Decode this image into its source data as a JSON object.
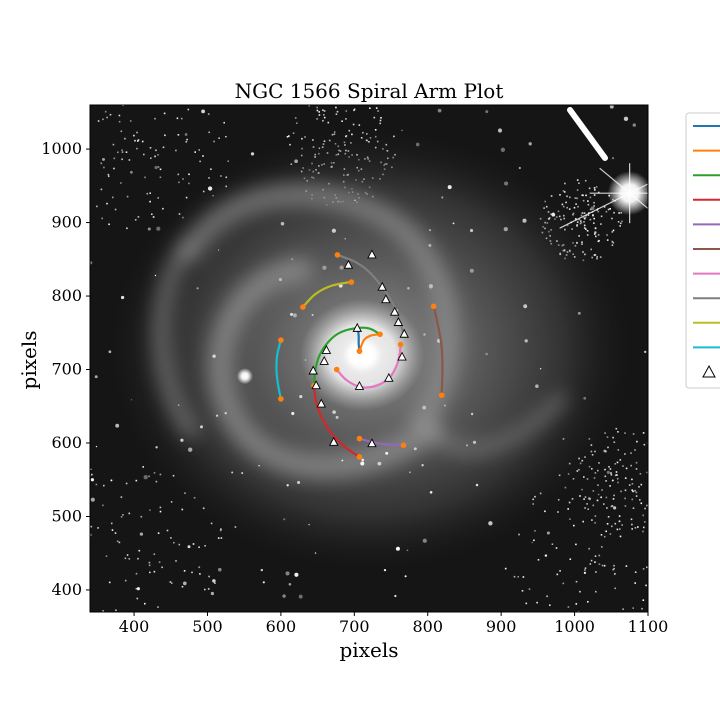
{
  "chart_data": {
    "type": "scatter",
    "title": "NGC 1566 Spiral Arm Plot",
    "xlabel": "pixels",
    "ylabel": "pixels",
    "xlim": [
      340,
      1100
    ],
    "ylim": [
      370,
      1060
    ],
    "xticks": [
      400,
      500,
      600,
      700,
      800,
      900,
      1000,
      1100
    ],
    "yticks": [
      400,
      500,
      600,
      700,
      800,
      900,
      1000
    ],
    "background": "grayscale galaxy image (NGC 1566)",
    "legend_placement": "right, outside axes (clipped)",
    "series": [
      {
        "kind": "arc",
        "color": "#1f77b4",
        "points": [
          [
            705,
            755
          ],
          [
            706,
            745
          ],
          [
            706,
            735
          ],
          [
            707,
            725
          ]
        ],
        "endpoints": [
          [
            707,
            725
          ]
        ]
      },
      {
        "kind": "arc",
        "color": "#ff7f0e",
        "points": [
          [
            707,
            725
          ],
          [
            713,
            740
          ],
          [
            722,
            746
          ],
          [
            735,
            748
          ]
        ],
        "endpoints": [
          [
            707,
            725
          ],
          [
            735,
            748
          ]
        ]
      },
      {
        "kind": "arc",
        "color": "#2ca02c",
        "points": [
          [
            735,
            748
          ],
          [
            720,
            756
          ],
          [
            700,
            756
          ],
          [
            680,
            750
          ],
          [
            665,
            738
          ],
          [
            653,
            720
          ],
          [
            647,
            700
          ],
          [
            645,
            678
          ]
        ],
        "endpoints": [
          [
            645,
            678
          ]
        ]
      },
      {
        "kind": "arc",
        "color": "#d62728",
        "points": [
          [
            645,
            678
          ],
          [
            648,
            655
          ],
          [
            657,
            632
          ],
          [
            670,
            612
          ],
          [
            688,
            594
          ],
          [
            707,
            581
          ]
        ],
        "endpoints": [
          [
            707,
            581
          ]
        ]
      },
      {
        "kind": "arc",
        "color": "#9467bd",
        "points": [
          [
            707,
            606
          ],
          [
            725,
            601
          ],
          [
            745,
            598
          ],
          [
            767,
            597
          ]
        ],
        "endpoints": [
          [
            707,
            606
          ],
          [
            767,
            597
          ]
        ]
      },
      {
        "kind": "arc",
        "color": "#8c564b",
        "points": [
          [
            808,
            786
          ],
          [
            814,
            760
          ],
          [
            819,
            730
          ],
          [
            820,
            700
          ],
          [
            819,
            665
          ]
        ],
        "endpoints": [
          [
            808,
            786
          ],
          [
            819,
            665
          ]
        ]
      },
      {
        "kind": "arc",
        "color": "#e377c2",
        "points": [
          [
            676,
            700
          ],
          [
            690,
            685
          ],
          [
            710,
            676
          ],
          [
            730,
            678
          ],
          [
            748,
            689
          ],
          [
            758,
            706
          ],
          [
            762,
            722
          ],
          [
            763,
            734
          ]
        ],
        "endpoints": [
          [
            676,
            700
          ],
          [
            763,
            734
          ]
        ]
      },
      {
        "kind": "arc",
        "color": "#7f7f7f",
        "points": [
          [
            677,
            856
          ],
          [
            702,
            846
          ],
          [
            720,
            833
          ],
          [
            735,
            816
          ],
          [
            749,
            796
          ],
          [
            760,
            773
          ],
          [
            767,
            748
          ]
        ],
        "endpoints": [
          [
            677,
            856
          ]
        ]
      },
      {
        "kind": "arc",
        "color": "#bcbd22",
        "points": [
          [
            630,
            785
          ],
          [
            646,
            802
          ],
          [
            666,
            813
          ],
          [
            688,
            818
          ],
          [
            696,
            819
          ]
        ],
        "endpoints": [
          [
            630,
            785
          ],
          [
            696,
            819
          ]
        ]
      },
      {
        "kind": "arc",
        "color": "#17becf",
        "points": [
          [
            600,
            740
          ],
          [
            595,
            720
          ],
          [
            594,
            700
          ],
          [
            596,
            680
          ],
          [
            600,
            660
          ]
        ],
        "endpoints": [
          [
            600,
            740
          ],
          [
            600,
            660
          ]
        ]
      }
    ],
    "triangles": [
      [
        724,
        856
      ],
      [
        692,
        842
      ],
      [
        738,
        812
      ],
      [
        743,
        795
      ],
      [
        755,
        778
      ],
      [
        760,
        764
      ],
      [
        768,
        748
      ],
      [
        765,
        717
      ],
      [
        747,
        688
      ],
      [
        704,
        756
      ],
      [
        707,
        677
      ],
      [
        644,
        698
      ],
      [
        648,
        678
      ],
      [
        659,
        711
      ],
      [
        662,
        726
      ],
      [
        655,
        653
      ],
      [
        672,
        601
      ],
      [
        724,
        599
      ]
    ],
    "stars": [
      {
        "x": 1075,
        "y": 940
      },
      {
        "x": 551,
        "y": 691
      }
    ],
    "legend_colors": [
      "#1f77b4",
      "#ff7f0e",
      "#2ca02c",
      "#d62728",
      "#9467bd",
      "#8c564b",
      "#e377c2",
      "#7f7f7f",
      "#bcbd22",
      "#17becf"
    ]
  }
}
